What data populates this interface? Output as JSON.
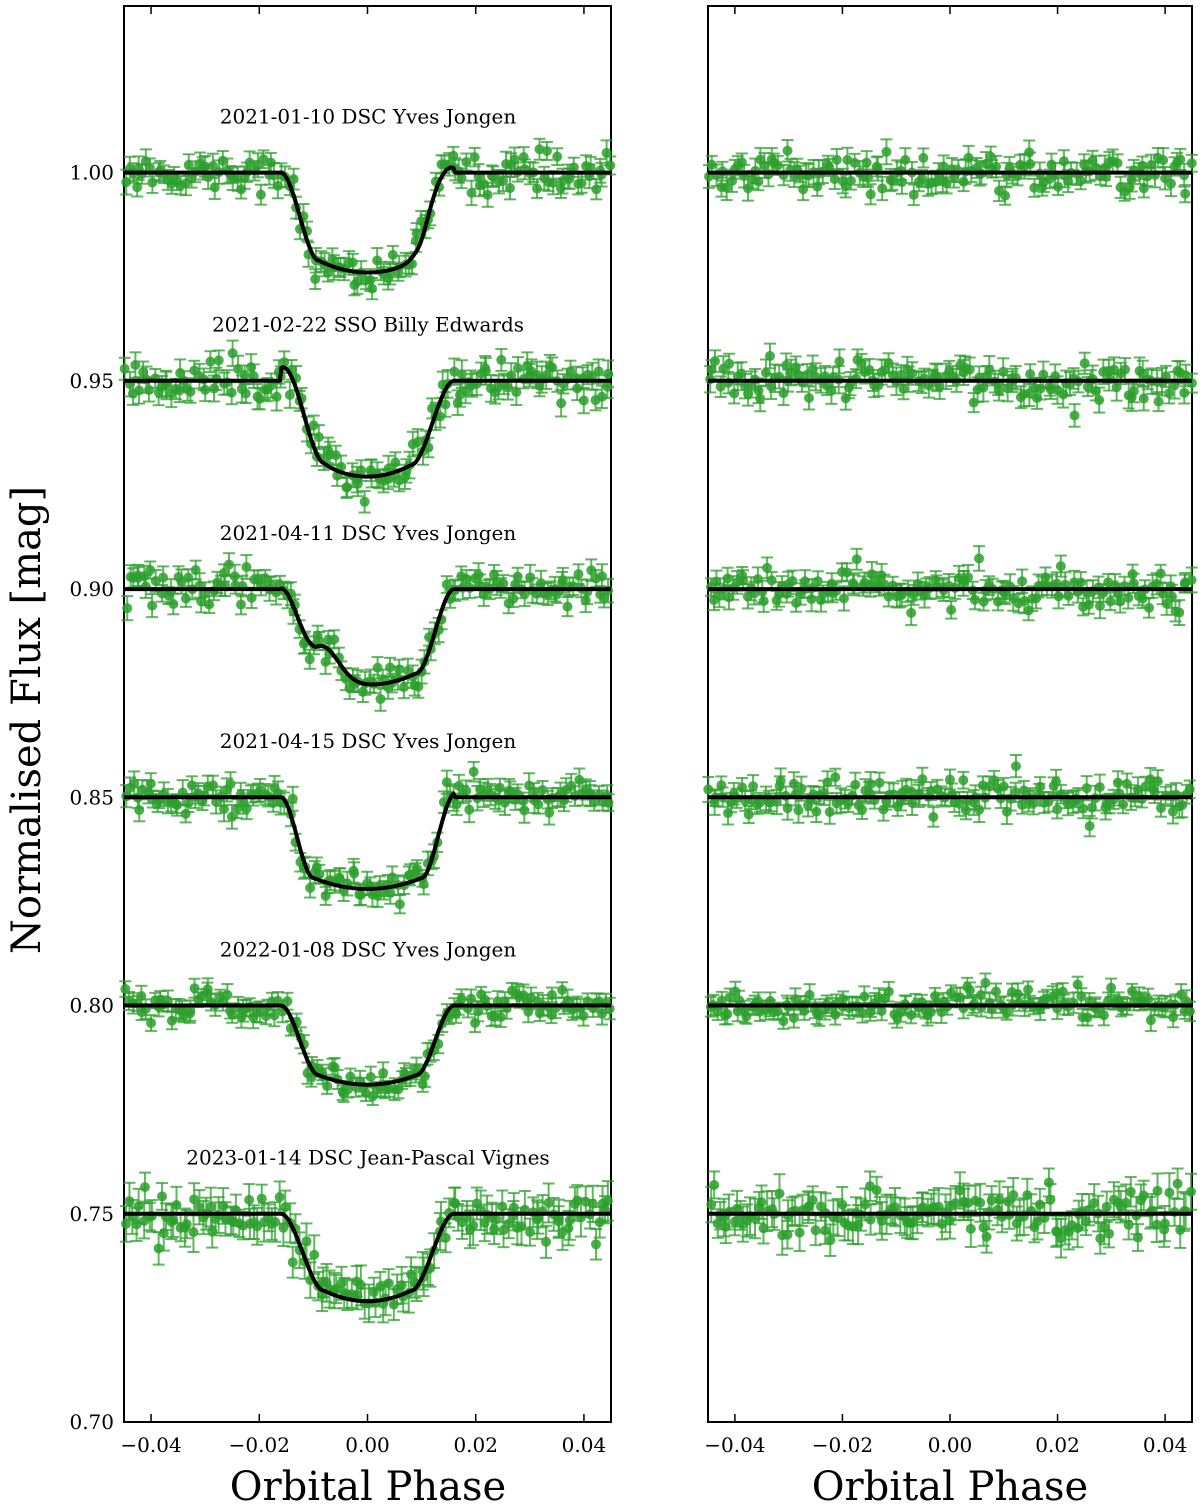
{
  "chart_data": [
    {
      "type": "scatter",
      "panel": "left",
      "xlabel": "Orbital Phase",
      "ylabel": "Normalised Flux [mag]",
      "xlim": [
        -0.045,
        0.045
      ],
      "ylim": [
        0.7,
        1.04
      ],
      "xticks": [
        -0.04,
        -0.02,
        0.0,
        0.02,
        0.04
      ],
      "xtick_labels": [
        "−0.04",
        "−0.02",
        "0.00",
        "0.02",
        "0.04"
      ],
      "yticks": [
        0.7,
        0.75,
        0.8,
        0.85,
        0.9,
        0.95,
        1.0
      ],
      "ytick_labels": [
        "0.70",
        "0.75",
        "0.80",
        "0.85",
        "0.90",
        "0.95",
        "1.00"
      ],
      "grid": false,
      "series": [
        {
          "name": "2021-01-10 DSC Yves Jongen",
          "offset": 1.0,
          "depth": 0.024,
          "t14": 0.032,
          "t12": 0.007,
          "bump": {
            "x": 0.012,
            "h": 0.006,
            "w": 0.003
          },
          "scatter": 0.0022,
          "err": 0.0025
        },
        {
          "name": "2021-02-22 SSO Billy Edwards",
          "offset": 0.95,
          "depth": 0.023,
          "t14": 0.032,
          "t12": 0.008,
          "bump": {
            "x": -0.014,
            "h": 0.004,
            "w": 0.004
          },
          "scatter": 0.0025,
          "err": 0.0028
        },
        {
          "name": "2021-04-11 DSC Yves Jongen",
          "offset": 0.9,
          "depth": 0.023,
          "t14": 0.032,
          "t12": 0.007,
          "bump": {
            "x": -0.008,
            "h": 0.007,
            "w": 0.004
          },
          "scatter": 0.0022,
          "err": 0.0025
        },
        {
          "name": "2021-04-15 DSC Yves Jongen",
          "offset": 0.85,
          "depth": 0.022,
          "t14": 0.032,
          "t12": 0.006,
          "bump": {
            "x": 0.02,
            "h": 0.006,
            "w": 0.003
          },
          "scatter": 0.0022,
          "err": 0.0025
        },
        {
          "name": "2022-01-08 DSC Yves Jongen",
          "offset": 0.8,
          "depth": 0.019,
          "t14": 0.032,
          "t12": 0.007,
          "bump": null,
          "scatter": 0.002,
          "err": 0.0022
        },
        {
          "name": "2023-01-14 DSC Jean-Pascal Vignes",
          "offset": 0.75,
          "depth": 0.021,
          "t14": 0.032,
          "t12": 0.008,
          "bump": null,
          "scatter": 0.003,
          "err": 0.004
        }
      ]
    },
    {
      "type": "scatter",
      "panel": "right",
      "xlabel": "Orbital Phase",
      "xlim": [
        -0.045,
        0.045
      ],
      "ylim": [
        0.7,
        1.04
      ],
      "xticks": [
        -0.04,
        -0.02,
        0.0,
        0.02,
        0.04
      ],
      "xtick_labels": [
        "−0.04",
        "−0.02",
        "0.00",
        "0.02",
        "0.04"
      ],
      "grid": false,
      "series": [
        {
          "offset": 1.0,
          "scatter": 0.0022,
          "err": 0.0025
        },
        {
          "offset": 0.95,
          "scatter": 0.0025,
          "err": 0.0028
        },
        {
          "offset": 0.9,
          "scatter": 0.0022,
          "err": 0.0025
        },
        {
          "offset": 0.85,
          "scatter": 0.0022,
          "err": 0.0025
        },
        {
          "offset": 0.8,
          "scatter": 0.002,
          "err": 0.0022
        },
        {
          "offset": 0.75,
          "scatter": 0.003,
          "err": 0.004
        }
      ]
    }
  ],
  "colors": {
    "points": "#2ca02c",
    "model": "#000000"
  }
}
